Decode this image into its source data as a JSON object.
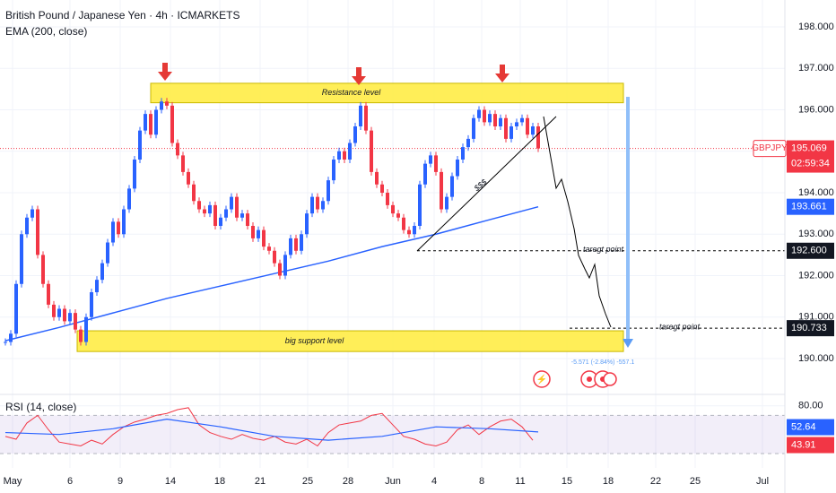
{
  "chart_data": {
    "type": "candlestick",
    "title": "British Pound / Japanese Yen · 4h · ICMARKETS",
    "indicator_label": "EMA (200, close)",
    "symbol": "GBPJPY",
    "countdown": "02:59:34",
    "closes": [
      190.4,
      190.6,
      191.8,
      193.0,
      193.4,
      193.6,
      192.5,
      191.8,
      191.3,
      191.0,
      191.2,
      190.9,
      191.1,
      190.7,
      190.4,
      191.0,
      191.6,
      191.9,
      192.3,
      192.8,
      193.3,
      193.0,
      193.6,
      194.1,
      194.8,
      195.5,
      195.9,
      195.4,
      196.0,
      196.2,
      196.1,
      195.2,
      194.9,
      194.5,
      194.2,
      193.8,
      193.6,
      193.5,
      193.7,
      193.2,
      193.4,
      193.6,
      193.9,
      193.4,
      193.5,
      193.2,
      192.9,
      193.1,
      192.7,
      192.6,
      192.3,
      192.0,
      192.5,
      192.9,
      192.6,
      193.0,
      193.5,
      193.9,
      193.6,
      193.8,
      194.3,
      194.8,
      195.0,
      194.8,
      195.2,
      195.6,
      196.1,
      195.5,
      194.5,
      194.2,
      194.0,
      193.7,
      193.5,
      193.4,
      193.1,
      193.0,
      193.2,
      194.2,
      194.7,
      194.9,
      194.5,
      193.6,
      193.9,
      194.4,
      194.8,
      195.1,
      195.3,
      195.8,
      196.0,
      195.7,
      195.9,
      195.6,
      195.8,
      195.3,
      195.6,
      195.7,
      195.8,
      195.4,
      195.6,
      195.069
    ],
    "up_color": "#2962ff",
    "down_color": "#f23645",
    "ema_index": [
      0,
      10,
      20,
      30,
      40,
      50,
      60,
      70,
      80,
      90,
      99
    ],
    "ema": {
      "color": "#2962ff",
      "values": [
        190.43,
        190.75,
        191.1,
        191.45,
        191.75,
        192.05,
        192.35,
        192.7,
        193.0,
        193.35,
        193.661
      ]
    },
    "ylim": [
      189.3,
      198.6
    ],
    "yticks": [
      {
        "value": 198,
        "label": "198.000"
      },
      {
        "value": 197,
        "label": "197.000"
      },
      {
        "value": 196,
        "label": "196.000"
      },
      {
        "value": 195,
        "label": "195.000"
      },
      {
        "value": 194,
        "label": "194.000"
      },
      {
        "value": 193,
        "label": "193.000"
      },
      {
        "value": 192,
        "label": "192.000"
      },
      {
        "value": 191,
        "label": "191.000"
      },
      {
        "value": 190,
        "label": "190.000"
      }
    ],
    "xticks": [
      "May",
      "6",
      "9",
      "14",
      "18",
      "21",
      "25",
      "28",
      "Jun",
      "4",
      "8",
      "11",
      "15",
      "18",
      "22",
      "25",
      "Jul"
    ],
    "levels": [
      {
        "value": 192.6,
        "label": "192.600",
        "text": "taregt point"
      },
      {
        "value": 190.733,
        "text": "taregt point"
      }
    ],
    "resistance": {
      "range": [
        196.17,
        196.64
      ],
      "label": "Resistance level"
    },
    "support": {
      "range": [
        190.17,
        190.67
      ],
      "label": "big support level"
    },
    "trendline_label": "$$$",
    "measure_label": "-5.571 (-2.84%) -557.1",
    "rsi": {
      "title": "RSI (14, close)",
      "color": "#f23645",
      "ma_color": "#2962ff",
      "values": [
        48,
        45,
        62,
        70,
        55,
        42,
        40,
        38,
        44,
        40,
        50,
        58,
        63,
        66,
        70,
        72,
        76,
        78,
        60,
        52,
        48,
        45,
        50,
        46,
        44,
        48,
        42,
        40,
        45,
        38,
        52,
        60,
        62,
        64,
        70,
        72,
        60,
        48,
        45,
        40,
        38,
        42,
        55,
        60,
        50,
        58,
        64,
        66,
        58,
        43.91
      ],
      "ma_values": [
        52,
        50,
        56,
        66,
        58,
        48,
        44,
        48,
        58,
        56,
        52.64
      ],
      "ylim": [
        15,
        88
      ],
      "band": [
        30,
        70
      ],
      "yticks": [
        {
          "value": 80,
          "label": "80.00"
        }
      ]
    }
  }
}
